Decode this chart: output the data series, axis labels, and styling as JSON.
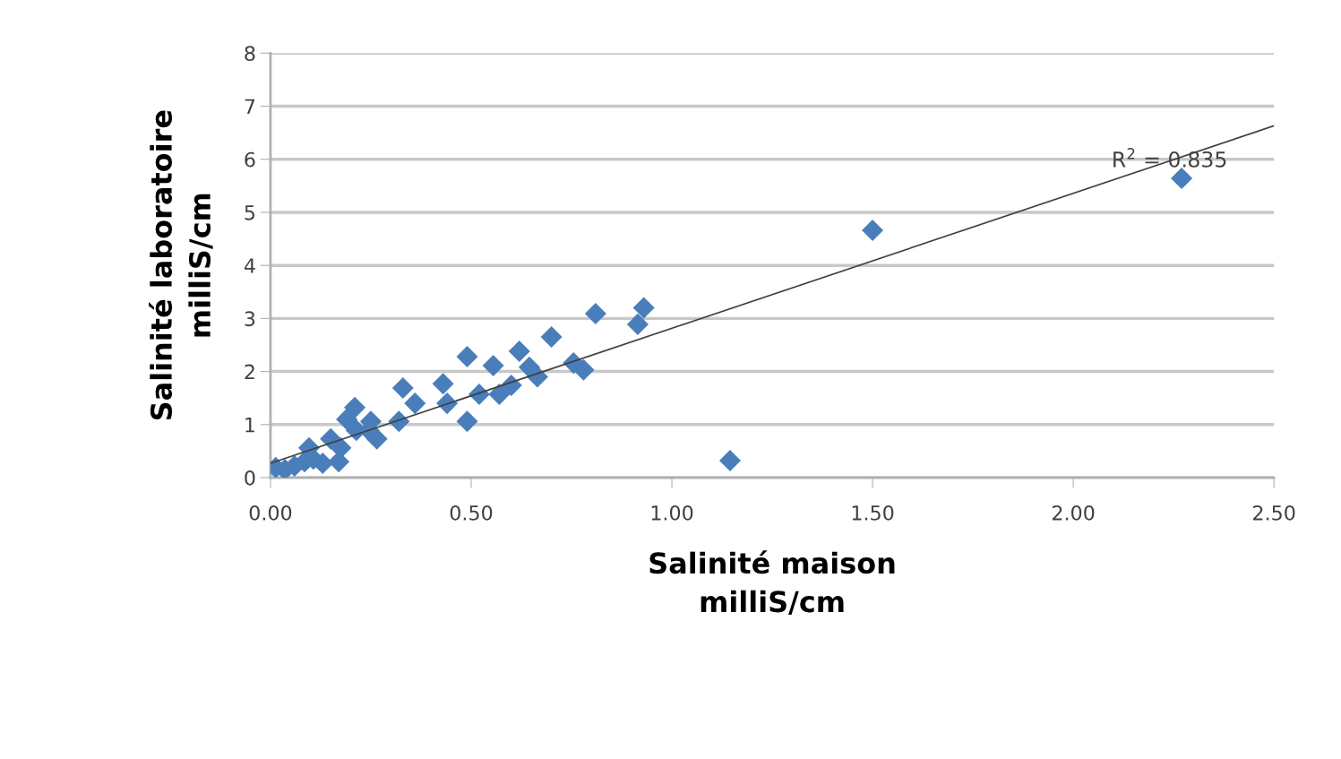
{
  "chart_data": {
    "type": "scatter",
    "xlabel": "Salinité maison\nmilliS/cm",
    "ylabel": "Salinité laboratoire\nmilliS/cm",
    "xlim": [
      0,
      2.5
    ],
    "ylim": [
      0,
      8
    ],
    "xticks": [
      {
        "value": 0,
        "label": "0.00"
      },
      {
        "value": 0.5,
        "label": "0.50"
      },
      {
        "value": 1,
        "label": "1.00"
      },
      {
        "value": 1.5,
        "label": "1.50"
      },
      {
        "value": 2,
        "label": "2.00"
      },
      {
        "value": 2.5,
        "label": "2.50"
      }
    ],
    "yticks": [
      0,
      1,
      2,
      3,
      4,
      5,
      6,
      7,
      8
    ],
    "grid": "y",
    "series": [
      {
        "color": "#4a7ebb",
        "marker": "diamond",
        "x": [
          2.27,
          1.5,
          1.145,
          0.93,
          0.915,
          0.81,
          0.7,
          0.755,
          0.78,
          0.62,
          0.645,
          0.665,
          0.6,
          0.57,
          0.555,
          0.49,
          0.52,
          0.49,
          0.43,
          0.44,
          0.36,
          0.33,
          0.32,
          0.21,
          0.25,
          0.265,
          0.175,
          0.013,
          0.036,
          0.06,
          0.085,
          0.096,
          0.107,
          0.15,
          0.17,
          0.13,
          0.19,
          0.214,
          0.245
        ],
        "values": [
          5.64,
          4.66,
          0.32,
          3.2,
          2.89,
          3.09,
          2.65,
          2.16,
          2.03,
          2.38,
          2.08,
          1.9,
          1.74,
          1.57,
          2.11,
          2.28,
          1.57,
          1.06,
          1.77,
          1.4,
          1.4,
          1.69,
          1.06,
          1.32,
          1.06,
          0.73,
          0.56,
          0.19,
          0.15,
          0.22,
          0.3,
          0.56,
          0.35,
          0.73,
          0.3,
          0.27,
          1.1,
          0.89,
          0.89
        ]
      },
      {
        "type": "line",
        "color": "#404040",
        "marker": "none",
        "line_style": "solid",
        "x": [
          0,
          2.5
        ],
        "values": [
          0.27,
          6.63
        ]
      }
    ],
    "annotations": [
      {
        "text": "R$^{2}$ = 0.835",
        "x": 2.24,
        "y": 5.96
      }
    ]
  }
}
